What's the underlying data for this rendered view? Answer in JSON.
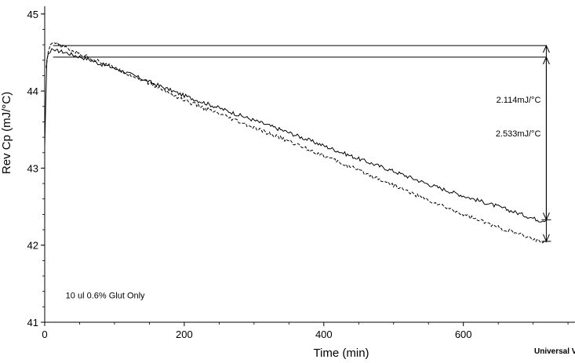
{
  "chart_data": {
    "type": "line",
    "xlabel": "Time (min)",
    "ylabel": "Rev Cp (mJ/°C)",
    "xlim": [
      0,
      760
    ],
    "ylim": [
      41,
      45.1
    ],
    "x_ticks": [
      0,
      200,
      400,
      600
    ],
    "y_ticks": [
      41,
      42,
      43,
      44,
      45
    ],
    "grid": false,
    "series": [
      {
        "line_style": "solid",
        "x": [
          0,
          3,
          5,
          8,
          10,
          15,
          20,
          30,
          40,
          60,
          80,
          100,
          150,
          200,
          250,
          300,
          350,
          400,
          450,
          500,
          550,
          600,
          650,
          700,
          710,
          720
        ],
        "y": [
          43.28,
          44.4,
          44.48,
          44.5,
          44.55,
          44.52,
          44.52,
          44.5,
          44.47,
          44.42,
          44.35,
          44.3,
          44.12,
          43.94,
          43.78,
          43.62,
          43.46,
          43.29,
          43.12,
          42.96,
          42.79,
          42.64,
          42.5,
          42.35,
          42.32,
          42.33
        ]
      },
      {
        "line_style": "dashed",
        "x": [
          2,
          5,
          8,
          12,
          20,
          30,
          40,
          60,
          80,
          100,
          150,
          200,
          250,
          300,
          350,
          400,
          450,
          500,
          550,
          600,
          650,
          700,
          710,
          720
        ],
        "y": [
          44.3,
          44.5,
          44.6,
          44.63,
          44.6,
          44.56,
          44.52,
          44.45,
          44.38,
          44.3,
          44.1,
          43.88,
          43.7,
          43.52,
          43.35,
          43.16,
          42.97,
          42.78,
          42.58,
          42.4,
          42.23,
          42.08,
          42.05,
          42.05
        ]
      }
    ],
    "reference_lines": [
      {
        "y": 44.59,
        "x_start": 12,
        "x_end": 720
      },
      {
        "y": 44.44,
        "x_start": 12,
        "x_end": 720
      }
    ],
    "measurements": [
      {
        "label": "2.114mJ/°C",
        "x": 720,
        "y_from": 44.44,
        "y_to": 42.33
      },
      {
        "label": "2.533mJ/°C",
        "x": 720,
        "y_from": 44.59,
        "y_to": 42.05
      }
    ],
    "annotations": [
      {
        "text": "10 ul 0.6% Glut Only",
        "x": 30,
        "y": 41.35
      }
    ],
    "footer": "Universal V"
  }
}
